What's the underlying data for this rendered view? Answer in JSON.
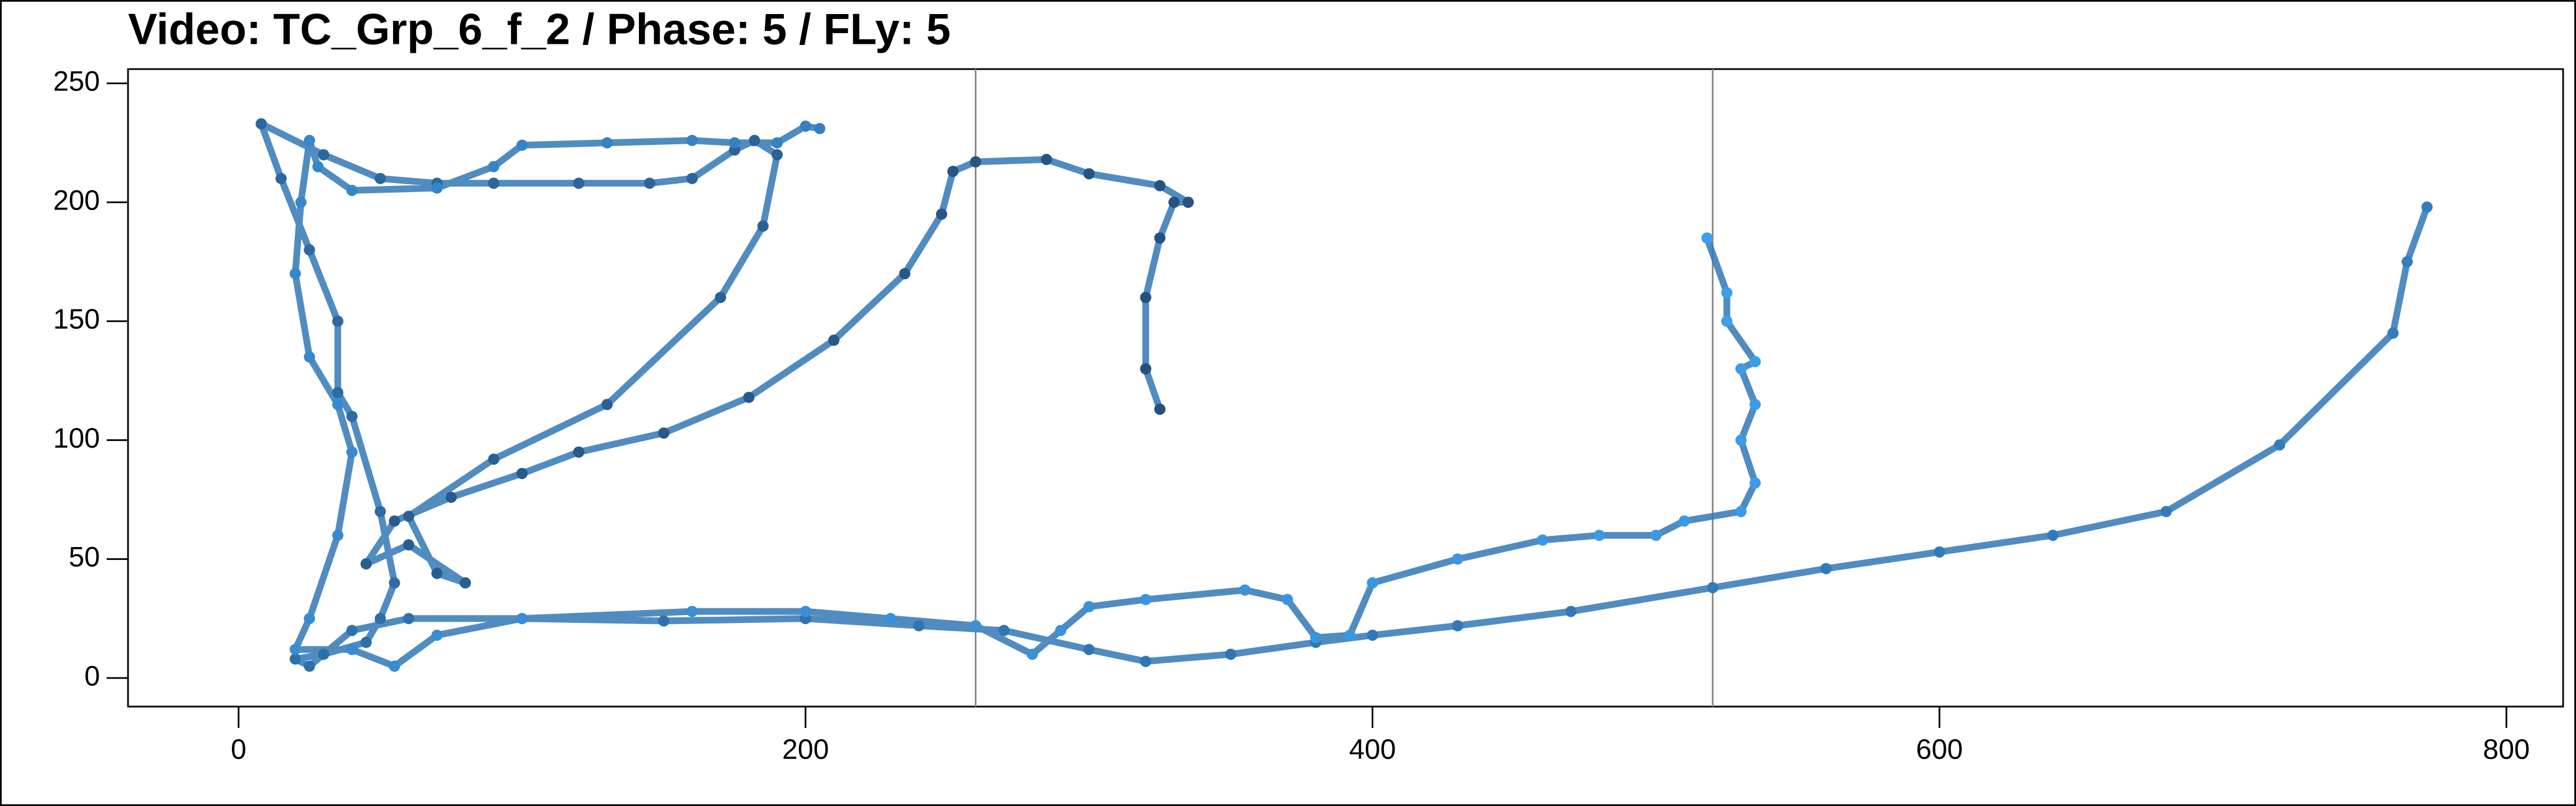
{
  "chart_data": {
    "type": "line",
    "title": "Video: TC_Grp_6_f_2 / Phase: 5 / FLy: 5",
    "x": [
      325,
      320,
      320,
      325,
      330,
      335,
      325,
      300,
      285,
      260,
      252,
      248,
      235,
      210,
      180,
      150,
      120,
      100,
      75,
      55,
      45,
      60,
      80,
      70,
      60,
      90,
      130,
      170,
      185,
      190,
      182,
      175,
      160,
      145,
      120,
      90,
      70,
      50,
      30,
      8,
      15,
      25,
      35,
      35,
      40,
      50,
      55,
      50,
      45,
      30,
      20,
      25,
      40,
      60,
      100,
      150,
      200,
      240,
      270,
      300,
      320,
      350,
      380,
      400,
      430,
      470,
      520,
      560,
      600,
      640,
      680,
      720,
      760,
      765,
      772,
      null,
      205,
      200,
      190,
      175,
      160,
      130,
      100,
      90,
      70,
      40,
      28,
      25,
      22,
      20,
      25,
      35,
      40,
      35,
      25,
      20,
      40,
      55,
      70,
      100,
      160,
      200,
      230,
      260,
      280,
      290,
      300,
      320,
      355,
      370,
      380,
      392,
      400,
      430,
      460,
      480,
      500,
      510,
      530,
      535,
      530,
      535,
      530,
      535,
      525,
      525,
      518
    ],
    "series": [
      {
        "values": [
          113,
          130,
          160,
          185,
          200,
          200,
          207,
          212,
          218,
          217,
          213,
          195,
          170,
          142,
          118,
          103,
          95,
          86,
          76,
          66,
          48,
          56,
          40,
          44,
          68,
          92,
          115,
          160,
          190,
          220,
          226,
          222,
          210,
          208,
          208,
          208,
          208,
          210,
          220,
          233,
          210,
          180,
          150,
          120,
          110,
          70,
          40,
          25,
          15,
          10,
          8,
          5,
          20,
          25,
          25,
          24,
          25,
          22,
          20,
          12,
          7,
          10,
          15,
          18,
          22,
          28,
          38,
          46,
          53,
          60,
          70,
          98,
          145,
          175,
          198,
          null,
          231,
          232,
          225,
          225,
          226,
          225,
          224,
          215,
          206,
          205,
          215,
          226,
          200,
          170,
          135,
          115,
          95,
          60,
          25,
          12,
          12,
          5,
          18,
          25,
          28,
          28,
          25,
          22,
          10,
          20,
          30,
          33,
          37,
          33,
          17,
          18,
          40,
          50,
          58,
          60,
          60,
          66,
          70,
          82,
          100,
          115,
          130,
          133,
          150,
          162,
          185
        ]
      }
    ],
    "colors": [
      "#25507c",
      "#3d9fee"
    ],
    "xlim": [
      -39,
      820
    ],
    "ylim": [
      -12,
      256
    ],
    "xticks": [
      0,
      200,
      400,
      600,
      800
    ],
    "yticks": [
      0,
      50,
      100,
      150,
      200,
      250
    ],
    "vlines": [
      260,
      520
    ]
  }
}
